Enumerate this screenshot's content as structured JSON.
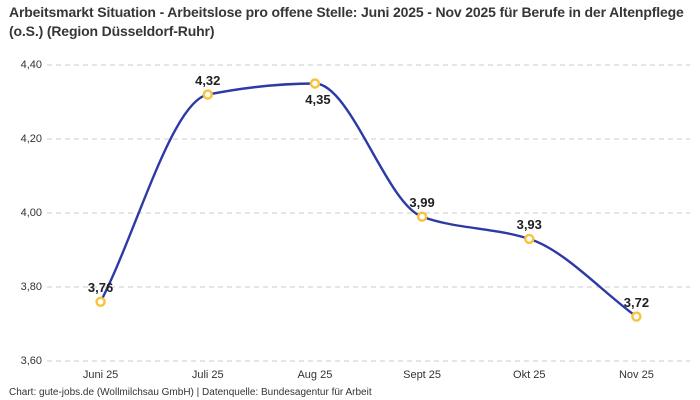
{
  "header": {
    "title": "Arbeitsmarkt Situation - Arbeitslose pro offene Stelle: Juni 2025 - Nov 2025 für Berufe in der Altenpflege (o.S.) (Region Düsseldorf-Ruhr)"
  },
  "footer": {
    "attribution": "Chart: gute-jobs.de (Wollmilchsau GmbH) | Datenquelle: Bundesagentur für Arbeit"
  },
  "chart_data": {
    "type": "line",
    "title": "Arbeitsmarkt Situation - Arbeitslose pro offene Stelle: Juni 2025 - Nov 2025 für Berufe in der Altenpflege (o.S.) (Region Düsseldorf-Ruhr)",
    "categories": [
      "Juni 25",
      "Juli 25",
      "Aug 25",
      "Sept 25",
      "Okt 25",
      "Nov 25"
    ],
    "values": [
      3.76,
      4.32,
      4.35,
      3.99,
      3.93,
      3.72
    ],
    "value_labels": [
      "3,76",
      "4,32",
      "4,35",
      "3,99",
      "3,93",
      "3,72"
    ],
    "value_label_placements": [
      "above",
      "above",
      "below",
      "above",
      "above",
      "above"
    ],
    "y_ticks": [
      4.4,
      4.2,
      4.0,
      3.8,
      3.6
    ],
    "y_tick_labels": [
      "4,40",
      "4,20",
      "4,00",
      "3,80",
      "3,60"
    ],
    "ylim": [
      3.6,
      4.4
    ],
    "xlabel": "",
    "ylabel": "",
    "legend": "none",
    "grid": "dashed-horizontal",
    "curve": "monotone",
    "colors": {
      "line": "#2b3aa5",
      "marker_ring": "#f8c23a",
      "marker_fill": "#ffffff",
      "gridline": "#cbcbcb"
    }
  }
}
